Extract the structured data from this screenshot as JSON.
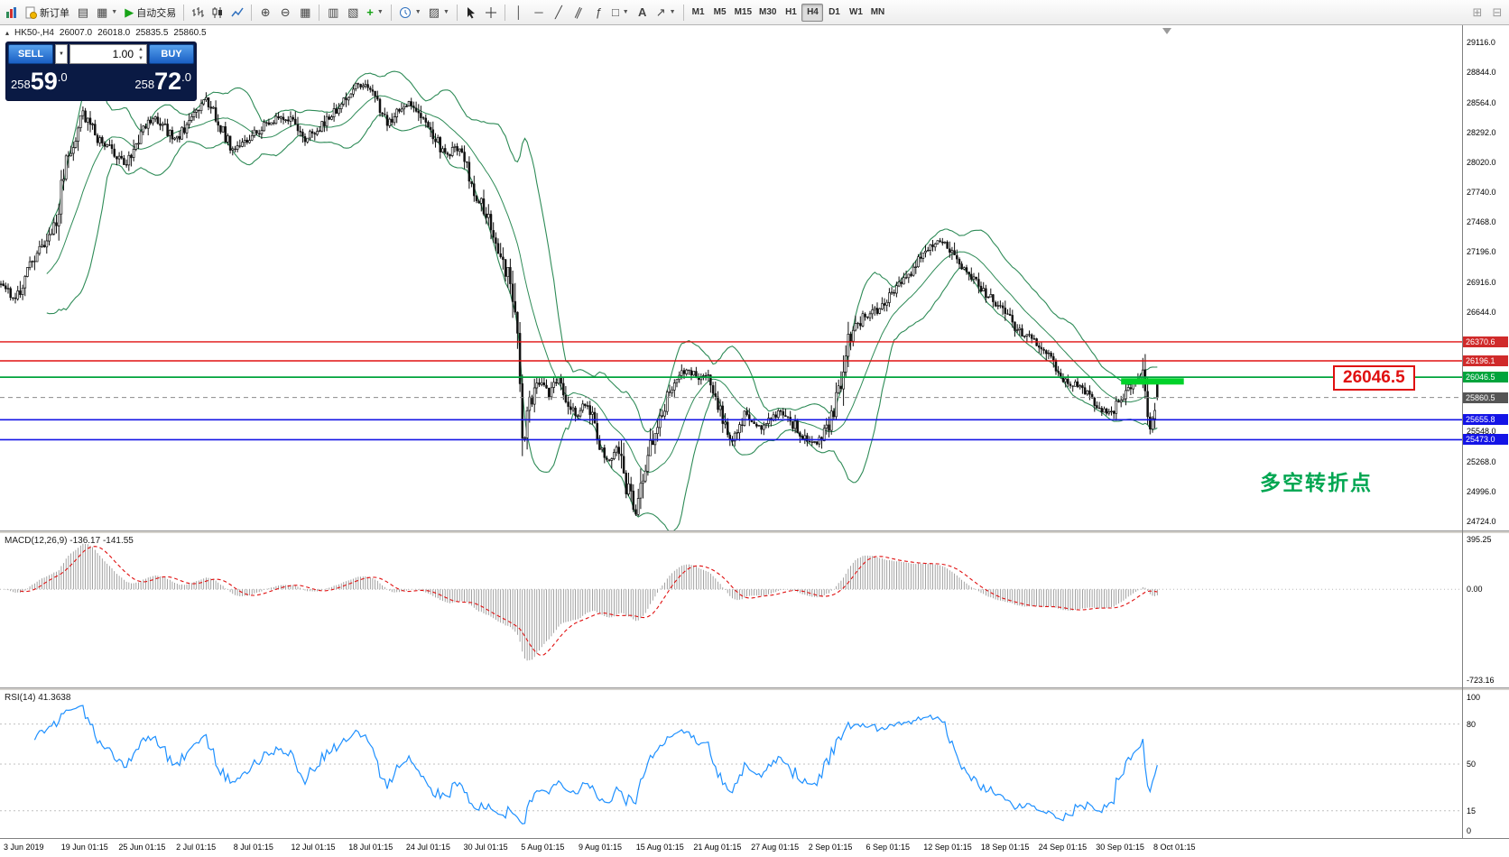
{
  "toolbar": {
    "new_order_label": "新订单",
    "autotrading_label": "自动交易",
    "timeframes": [
      "M1",
      "M5",
      "M15",
      "M30",
      "H1",
      "H4",
      "D1",
      "W1",
      "MN"
    ],
    "active_timeframe": "H4"
  },
  "trade_panel": {
    "sell_label": "SELL",
    "buy_label": "BUY",
    "volume": "1.00",
    "sell_price": {
      "prefix": "258",
      "big": "59",
      "frac": ".0"
    },
    "buy_price": {
      "prefix": "258",
      "big": "72",
      "frac": ".0"
    }
  },
  "symbol_bar": {
    "symbol": "HK50-,H4",
    "open": "26007.0",
    "high": "26018.0",
    "low": "25835.5",
    "close": "25860.5"
  },
  "panes": {
    "macd_label": "MACD(12,26,9) -136.17 -141.55",
    "rsi_label": "RSI(14) 41.3638"
  },
  "annotations": {
    "price_label": "26046.5",
    "note_text": "多空转折点"
  },
  "chart_data": {
    "type": "candlestick",
    "symbol": "HK50-",
    "timeframe": "H4",
    "bars": 480,
    "seed": 11,
    "last_bar": {
      "open": 26007.0,
      "high": 26018.0,
      "low": 25835.5,
      "close": 25860.5
    },
    "price_range": {
      "top": 29116.0,
      "bottom": 24724.0
    },
    "price_anchors": [
      [
        0,
        26900
      ],
      [
        6,
        26760
      ],
      [
        14,
        27160
      ],
      [
        22,
        27400
      ],
      [
        27,
        27980
      ],
      [
        34,
        28460
      ],
      [
        40,
        28240
      ],
      [
        46,
        28130
      ],
      [
        52,
        27990
      ],
      [
        58,
        28290
      ],
      [
        64,
        28440
      ],
      [
        72,
        28210
      ],
      [
        80,
        28430
      ],
      [
        84,
        28610
      ],
      [
        90,
        28400
      ],
      [
        96,
        28120
      ],
      [
        104,
        28260
      ],
      [
        112,
        28400
      ],
      [
        120,
        28430
      ],
      [
        126,
        28230
      ],
      [
        134,
        28390
      ],
      [
        142,
        28560
      ],
      [
        148,
        28740
      ],
      [
        154,
        28650
      ],
      [
        160,
        28380
      ],
      [
        166,
        28500
      ],
      [
        170,
        28560
      ],
      [
        178,
        28300
      ],
      [
        184,
        28090
      ],
      [
        190,
        28160
      ],
      [
        196,
        27760
      ],
      [
        202,
        27500
      ],
      [
        207,
        27180
      ],
      [
        211,
        26900
      ],
      [
        214,
        26520
      ],
      [
        216,
        25400
      ],
      [
        219,
        25830
      ],
      [
        223,
        26010
      ],
      [
        227,
        25890
      ],
      [
        231,
        26030
      ],
      [
        235,
        25800
      ],
      [
        239,
        25690
      ],
      [
        243,
        25830
      ],
      [
        247,
        25450
      ],
      [
        251,
        25270
      ],
      [
        255,
        25430
      ],
      [
        259,
        25060
      ],
      [
        263,
        24790
      ],
      [
        267,
        25240
      ],
      [
        271,
        25600
      ],
      [
        275,
        25780
      ],
      [
        279,
        26030
      ],
      [
        284,
        26120
      ],
      [
        290,
        26050
      ],
      [
        294,
        26020
      ],
      [
        298,
        25720
      ],
      [
        303,
        25460
      ],
      [
        308,
        25700
      ],
      [
        313,
        25570
      ],
      [
        318,
        25650
      ],
      [
        323,
        25740
      ],
      [
        328,
        25620
      ],
      [
        333,
        25500
      ],
      [
        338,
        25430
      ],
      [
        343,
        25610
      ],
      [
        347,
        25900
      ],
      [
        351,
        26400
      ],
      [
        357,
        26590
      ],
      [
        363,
        26660
      ],
      [
        369,
        26800
      ],
      [
        375,
        26960
      ],
      [
        381,
        27140
      ],
      [
        387,
        27290
      ],
      [
        392,
        27260
      ],
      [
        397,
        27090
      ],
      [
        402,
        26950
      ],
      [
        408,
        26800
      ],
      [
        414,
        26700
      ],
      [
        420,
        26520
      ],
      [
        427,
        26380
      ],
      [
        434,
        26230
      ],
      [
        441,
        26010
      ],
      [
        448,
        25940
      ],
      [
        455,
        25780
      ],
      [
        460,
        25710
      ],
      [
        465,
        25880
      ],
      [
        470,
        26010
      ],
      [
        473,
        26070
      ],
      [
        476,
        25560
      ],
      [
        478,
        25760
      ],
      [
        479,
        25880
      ]
    ],
    "indicators": {
      "bollinger": {
        "period": 20,
        "deviation": 2
      },
      "macd": {
        "fast": 12,
        "slow": 26,
        "signal": 9,
        "current": "-136.17",
        "signal_current": "-141.55"
      },
      "rsi": {
        "period": 14,
        "current": "41.3638",
        "levels": [
          80,
          50,
          15
        ]
      }
    },
    "hlines": [
      {
        "price": 26370.6,
        "color": "#e01010",
        "style": "solid",
        "width": 1.4
      },
      {
        "price": 26196.1,
        "color": "#e01010",
        "style": "solid",
        "width": 1.4
      },
      {
        "price": 26046.5,
        "color": "#00a43c",
        "style": "solid",
        "width": 1.8
      },
      {
        "price": 25860.5,
        "color": "#8a8a8a",
        "style": "dash",
        "width": 1
      },
      {
        "price": 25655.8,
        "color": "#1414e6",
        "style": "solid",
        "width": 1.6
      },
      {
        "price": 25473.0,
        "color": "#1414e6",
        "style": "solid",
        "width": 1.6
      }
    ],
    "highlight_bar": {
      "from_bar": 464,
      "to_bar": 490,
      "price": 26012,
      "color": "#00d22a"
    },
    "price_ticks": [
      "29116.0",
      "28844.0",
      "28564.0",
      "28292.0",
      "28020.0",
      "27740.0",
      "27468.0",
      "27196.0",
      "26916.0",
      "26644.0",
      "25548.0",
      "25268.0",
      "24996.0",
      "24724.0"
    ],
    "price_badges": [
      {
        "text": "26370.6",
        "color": "#d02a2a"
      },
      {
        "text": "26196.1",
        "color": "#d02a2a"
      },
      {
        "text": "26046.5",
        "color": "#00a43c"
      },
      {
        "text": "25860.5",
        "color": "#555555"
      },
      {
        "text": "25655.8",
        "color": "#1414e6"
      },
      {
        "text": "25473.0",
        "color": "#1414e6"
      }
    ],
    "macd_axis": [
      "395.25",
      "0.00",
      "-723.16"
    ],
    "rsi_axis": [
      "100",
      "80",
      "50",
      "15",
      "0"
    ],
    "time_labels": [
      "3 Jun 2019",
      "19 Jun 01:15",
      "25 Jun 01:15",
      "2 Jul 01:15",
      "8 Jul 01:15",
      "12 Jul 01:15",
      "18 Jul 01:15",
      "24 Jul 01:15",
      "30 Jul 01:15",
      "5 Aug 01:15",
      "9 Aug 01:15",
      "15 Aug 01:15",
      "21 Aug 01:15",
      "27 Aug 01:15",
      "2 Sep 01:15",
      "6 Sep 01:15",
      "12 Sep 01:15",
      "18 Sep 01:15",
      "24 Sep 01:15",
      "30 Sep 01:15",
      "8 Oct 01:15"
    ]
  }
}
